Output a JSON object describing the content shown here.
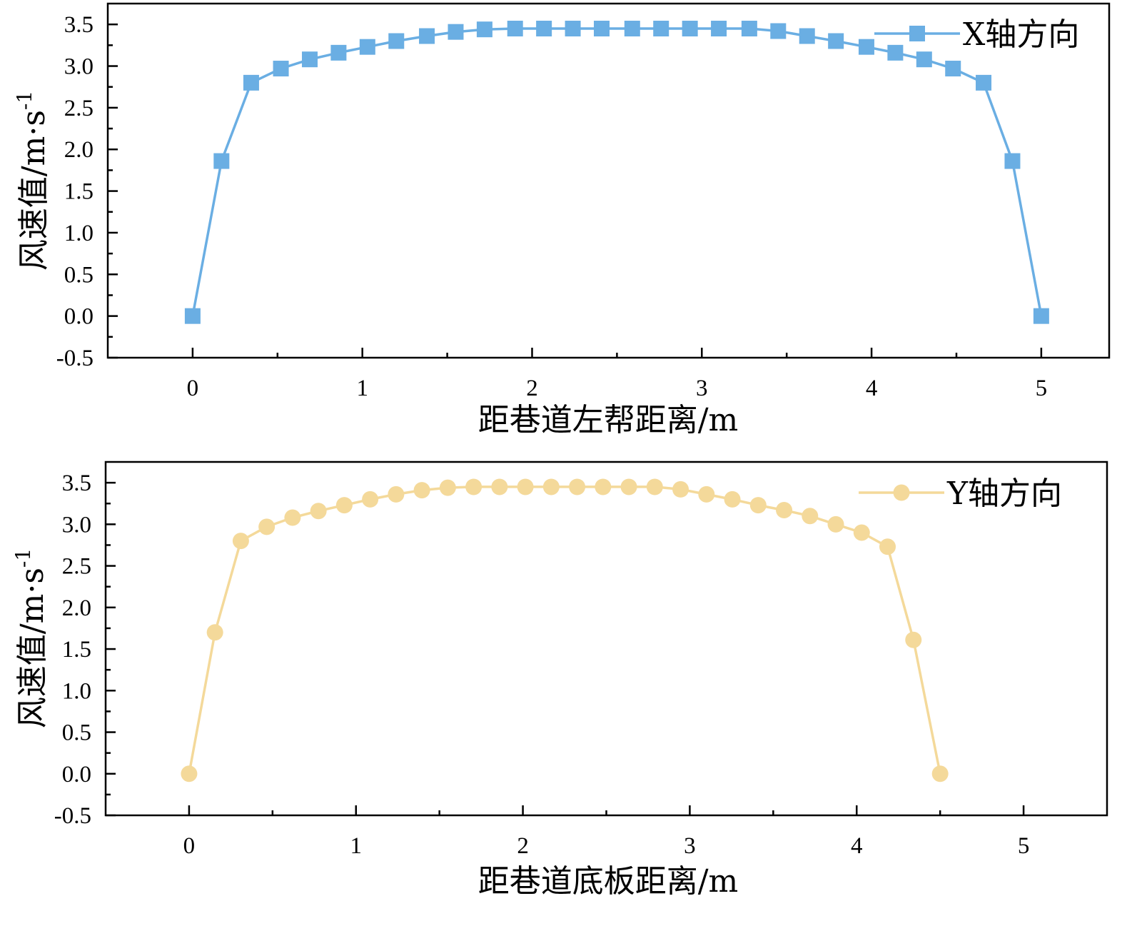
{
  "chart_data": [
    {
      "type": "line",
      "xlabel": "距巷道左帮距离/m",
      "ylabel": "风速值/m·s",
      "ylabel_sup": "-1",
      "xlim": [
        -0.5,
        5.4
      ],
      "ylim": [
        -0.5,
        3.75
      ],
      "x_ticks": [
        0,
        1,
        2,
        3,
        4,
        5
      ],
      "y_ticks": [
        -0.5,
        0.0,
        0.5,
        1.0,
        1.5,
        2.0,
        2.5,
        3.0,
        3.5
      ],
      "x_tick_labels": [
        "0",
        "1",
        "2",
        "3",
        "4",
        "5"
      ],
      "y_tick_labels": [
        "-0.5",
        "0.0",
        "0.5",
        "1.0",
        "1.5",
        "2.0",
        "2.5",
        "3.0",
        "3.5"
      ],
      "legend_position": "top-right",
      "series": [
        {
          "name": "X轴方向",
          "color": "#6aaee3",
          "marker": "square",
          "x": [
            0,
            0.17,
            0.345,
            0.52,
            0.69,
            0.86,
            1.03,
            1.2,
            1.38,
            1.55,
            1.72,
            1.9,
            2.07,
            2.24,
            2.41,
            2.59,
            2.76,
            2.93,
            3.1,
            3.28,
            3.45,
            3.62,
            3.79,
            3.97,
            4.14,
            4.31,
            4.48,
            4.66,
            4.83,
            5.0
          ],
          "y": [
            0.0,
            1.86,
            2.8,
            2.97,
            3.08,
            3.16,
            3.23,
            3.3,
            3.36,
            3.41,
            3.44,
            3.45,
            3.45,
            3.45,
            3.45,
            3.45,
            3.45,
            3.45,
            3.45,
            3.45,
            3.42,
            3.36,
            3.3,
            3.23,
            3.16,
            3.08,
            2.97,
            2.8,
            1.86,
            0.0
          ]
        }
      ]
    },
    {
      "type": "line",
      "xlabel": "距巷道底板距离/m",
      "ylabel": "风速值/m·s",
      "ylabel_sup": "-1",
      "xlim": [
        -0.5,
        5.5
      ],
      "ylim": [
        -0.5,
        3.75
      ],
      "x_ticks": [
        0,
        1,
        2,
        3,
        4,
        5
      ],
      "y_ticks": [
        -0.5,
        0.0,
        0.5,
        1.0,
        1.5,
        2.0,
        2.5,
        3.0,
        3.5
      ],
      "x_tick_labels": [
        "0",
        "1",
        "2",
        "3",
        "4",
        "5"
      ],
      "y_tick_labels": [
        "-0.5",
        "0.0",
        "0.5",
        "1.0",
        "1.5",
        "2.0",
        "2.5",
        "3.0",
        "3.5"
      ],
      "legend_position": "top-right",
      "series": [
        {
          "name": "Y轴方向",
          "color": "#f4d99a",
          "marker": "circle",
          "x": [
            0,
            0.155,
            0.31,
            0.465,
            0.62,
            0.775,
            0.93,
            1.085,
            1.24,
            1.395,
            1.55,
            1.705,
            1.86,
            2.015,
            2.17,
            2.325,
            2.48,
            2.635,
            2.79,
            2.945,
            3.1,
            3.255,
            3.41,
            3.565,
            3.72,
            3.875,
            4.03,
            4.185,
            4.34,
            4.5
          ],
          "y": [
            0.0,
            1.7,
            2.8,
            2.97,
            3.08,
            3.16,
            3.23,
            3.3,
            3.36,
            3.41,
            3.44,
            3.45,
            3.45,
            3.45,
            3.45,
            3.45,
            3.45,
            3.45,
            3.45,
            3.42,
            3.36,
            3.3,
            3.23,
            3.17,
            3.1,
            3.0,
            2.9,
            2.73,
            1.61,
            0.0
          ]
        }
      ]
    }
  ]
}
